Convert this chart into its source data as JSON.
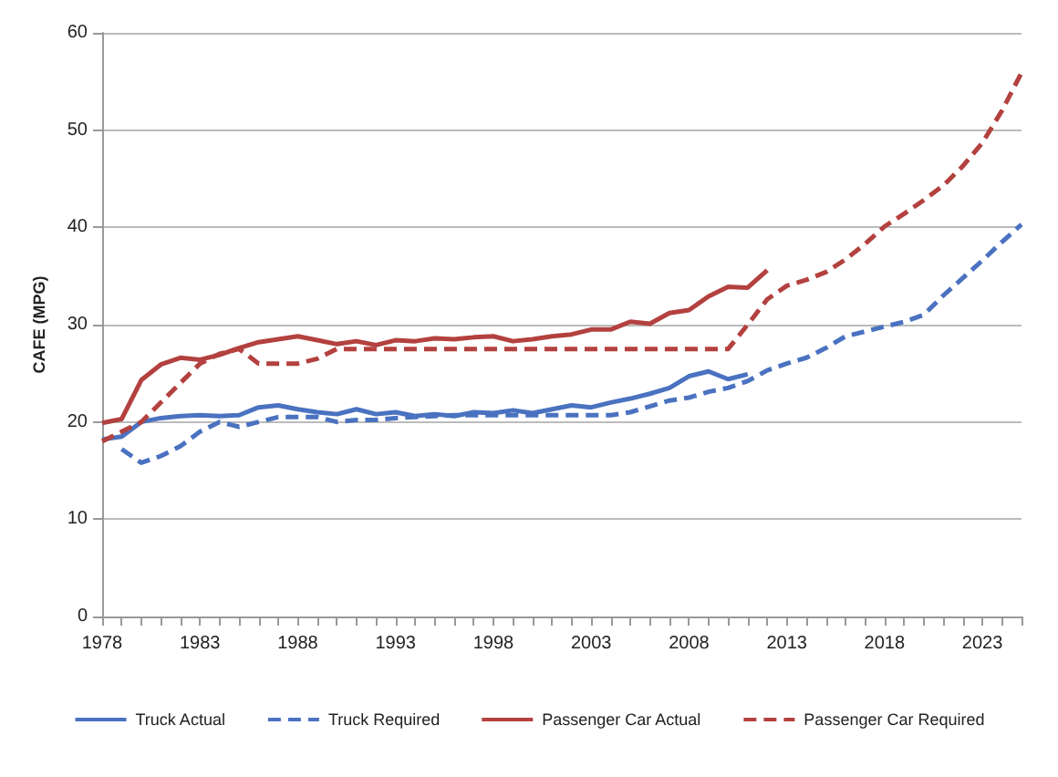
{
  "chart_data": {
    "type": "line",
    "ylabel": "CAFE (MPG)",
    "categories": [
      "1978",
      null,
      null,
      null,
      null,
      "1983",
      null,
      null,
      null,
      null,
      "1988",
      null,
      null,
      null,
      null,
      "1993",
      null,
      null,
      null,
      null,
      "1998",
      null,
      null,
      null,
      null,
      "2003",
      null,
      null,
      null,
      null,
      "2008",
      null,
      null,
      null,
      null,
      "2013",
      null,
      null,
      null,
      null,
      "2018",
      null,
      null,
      null,
      null,
      "2023",
      null,
      null
    ],
    "series": [
      {
        "name": "Truck Actual",
        "color": "#4a72c0",
        "line_style": "solid",
        "values": [
          18.2,
          18.5,
          20.0,
          20.4,
          20.6,
          20.7,
          20.6,
          20.7,
          21.5,
          21.7,
          21.3,
          21.0,
          20.8,
          21.3,
          20.8,
          21.0,
          20.6,
          20.8,
          20.6,
          21.0,
          20.9,
          21.2,
          20.9,
          21.3,
          21.7,
          21.5,
          22.0,
          22.4,
          22.9,
          23.5,
          24.7,
          25.2,
          24.4,
          24.9,
          null,
          null,
          null,
          null,
          null,
          null,
          null,
          null,
          null,
          null,
          null,
          null,
          null,
          null
        ]
      },
      {
        "name": "Truck Required",
        "color": "#4a72c0",
        "line_style": "dashed",
        "values": [
          null,
          17.2,
          15.8,
          16.5,
          17.5,
          19.0,
          20.0,
          19.5,
          20.0,
          20.5,
          20.5,
          20.5,
          20.0,
          20.2,
          20.2,
          20.4,
          20.5,
          20.6,
          20.7,
          20.7,
          20.7,
          20.7,
          20.7,
          20.7,
          20.7,
          20.7,
          20.7,
          21.0,
          21.6,
          22.2,
          22.5,
          23.1,
          23.5,
          24.2,
          25.3,
          26.0,
          26.6,
          27.6,
          28.8,
          29.3,
          29.8,
          30.3,
          31.0,
          33.0,
          34.8,
          36.6,
          38.5,
          40.3
        ]
      },
      {
        "name": "Passenger Car Actual",
        "color": "#b3413f",
        "line_style": "solid",
        "values": [
          19.9,
          20.3,
          24.3,
          25.9,
          26.6,
          26.4,
          26.9,
          27.6,
          28.2,
          28.5,
          28.8,
          28.4,
          28.0,
          28.3,
          27.9,
          28.4,
          28.3,
          28.6,
          28.5,
          28.7,
          28.8,
          28.3,
          28.5,
          28.8,
          29.0,
          29.5,
          29.5,
          30.3,
          30.1,
          31.2,
          31.5,
          32.9,
          33.9,
          33.8,
          35.6,
          null,
          null,
          null,
          null,
          null,
          null,
          null,
          null,
          null,
          null,
          null,
          null,
          null
        ]
      },
      {
        "name": "Passenger Car Required",
        "color": "#b3413f",
        "line_style": "dashed",
        "values": [
          18.0,
          19.0,
          20.0,
          22.0,
          24.0,
          26.0,
          27.0,
          27.5,
          26.0,
          26.0,
          26.0,
          26.5,
          27.5,
          27.5,
          27.5,
          27.5,
          27.5,
          27.5,
          27.5,
          27.5,
          27.5,
          27.5,
          27.5,
          27.5,
          27.5,
          27.5,
          27.5,
          27.5,
          27.5,
          27.5,
          27.5,
          27.5,
          27.5,
          30.0,
          32.6,
          34.0,
          34.6,
          35.4,
          36.7,
          38.3,
          40.1,
          41.4,
          42.8,
          44.3,
          46.3,
          48.7,
          52.0,
          55.9
        ]
      }
    ],
    "ylim": [
      0,
      60
    ],
    "yticks": [
      0,
      10,
      20,
      30,
      40,
      50,
      60
    ],
    "grid": "y",
    "legend": "bottom",
    "marker": "none"
  }
}
